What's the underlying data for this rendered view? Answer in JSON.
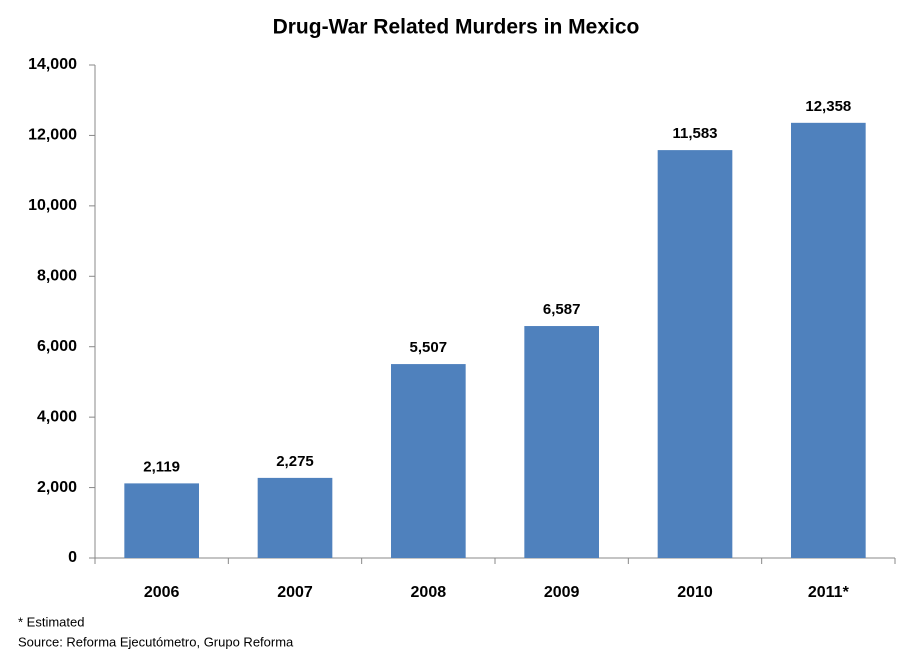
{
  "chart_data": {
    "type": "bar",
    "title": "Drug-War Related Murders in Mexico",
    "categories": [
      "2006",
      "2007",
      "2008",
      "2009",
      "2010",
      "2011*"
    ],
    "values": [
      2119,
      2275,
      5507,
      6587,
      11583,
      12358
    ],
    "value_labels": [
      "2,119",
      "2,275",
      "5,507",
      "6,587",
      "11,583",
      "12,358"
    ],
    "color": "#4f81bd",
    "ylim": [
      0,
      14000
    ],
    "yticks": [
      0,
      {
        "value": 2000,
        "label": "2,000"
      },
      {
        "value": 4000,
        "label": "4,000"
      },
      {
        "value": 6000,
        "label": "6,000"
      },
      {
        "value": 8000,
        "label": "8,000"
      },
      {
        "value": 10000,
        "label": "10,000"
      },
      {
        "value": 12000,
        "label": "12,000"
      },
      {
        "value": 14000,
        "label": "14,000"
      }
    ],
    "grid": false,
    "notes": [
      "* Estimated",
      "Source: Reforma Ejecutómetro, Grupo Reforma"
    ]
  }
}
